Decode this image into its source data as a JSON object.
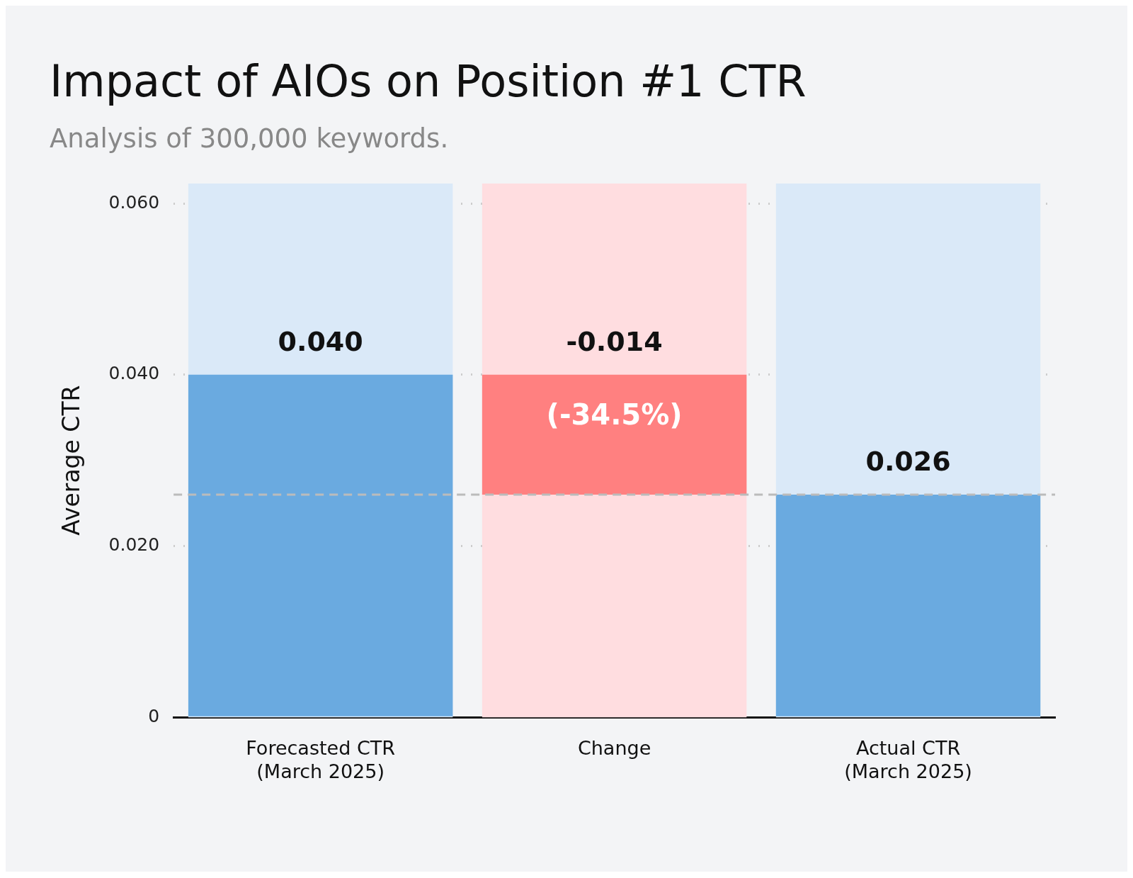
{
  "chart_data": {
    "type": "bar",
    "title": "Impact of AIOs on Position #1 CTR",
    "subtitle": "Analysis of 300,000 keywords.",
    "ylabel": "Average CTR",
    "categories": [
      "Forecasted CTR\n(March 2025)",
      "Change",
      "Actual CTR\n(March 2025)"
    ],
    "values": [
      0.04,
      -0.014,
      0.026
    ],
    "base": [
      0,
      0.04,
      0
    ],
    "colors": [
      "#6aaae0",
      "#ff8080",
      "#6aaae0"
    ],
    "value_labels": [
      "0.040",
      "-0.014",
      "0.026"
    ],
    "annotations": [
      "(-34.5%)"
    ],
    "bands": [
      {
        "axis": "x",
        "from": "Forecasted CTR\n(March 2025)",
        "to": "Forecasted CTR\n(March 2025)",
        "color": "#dae9f8"
      },
      {
        "axis": "x",
        "from": "Change",
        "to": "Change",
        "color": "#ffdde0"
      },
      {
        "axis": "x",
        "from": "Actual CTR\n(March 2025)",
        "to": "Actual CTR\n(March 2025)",
        "color": "#dae9f8"
      }
    ],
    "ref_lines": [
      {
        "axis": "y",
        "value": 0.026,
        "color": "#bbbbbb",
        "line_style": "dashed"
      }
    ],
    "ylim": [
      0,
      0.06
    ],
    "yticks": [
      {
        "value": 0,
        "label": "0"
      },
      {
        "value": 0.02,
        "label": "0.020"
      },
      {
        "value": 0.04,
        "label": "0.040"
      },
      {
        "value": 0.06,
        "label": "0.060"
      }
    ],
    "grid": "y",
    "legend": false
  }
}
